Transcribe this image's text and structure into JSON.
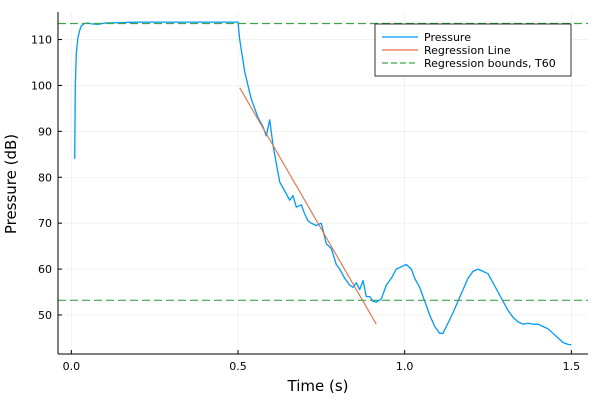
{
  "chart_data": {
    "type": "line",
    "title": "",
    "xlabel": "Time (s)",
    "ylabel": "Pressure (dB)",
    "xlim": [
      -0.04,
      1.55
    ],
    "ylim": [
      41.5,
      116
    ],
    "x_ticks": [
      0.0,
      0.5,
      1.0,
      1.5
    ],
    "x_tick_labels": [
      "0.0",
      "0.5",
      "1.0",
      "1.5"
    ],
    "y_ticks": [
      50,
      60,
      70,
      80,
      90,
      100,
      110
    ],
    "y_tick_labels": [
      "50",
      "60",
      "70",
      "80",
      "90",
      "100",
      "110"
    ],
    "grid": true,
    "legend_position": "top-right",
    "series": [
      {
        "name": "Pressure",
        "color": "#009AFA",
        "style": "solid",
        "x": [
          0.01,
          0.012,
          0.015,
          0.02,
          0.025,
          0.03,
          0.04,
          0.05,
          0.06,
          0.08,
          0.1,
          0.15,
          0.2,
          0.3,
          0.4,
          0.5,
          0.505,
          0.52,
          0.54,
          0.56,
          0.575,
          0.585,
          0.595,
          0.605,
          0.615,
          0.625,
          0.64,
          0.655,
          0.665,
          0.675,
          0.69,
          0.7,
          0.71,
          0.72,
          0.735,
          0.75,
          0.765,
          0.78,
          0.795,
          0.805,
          0.82,
          0.835,
          0.845,
          0.855,
          0.865,
          0.875,
          0.885,
          0.895,
          0.905,
          0.915,
          0.93,
          0.945,
          0.96,
          0.975,
          0.99,
          1.005,
          1.02,
          1.03,
          1.045,
          1.06,
          1.075,
          1.09,
          1.105,
          1.115,
          1.125,
          1.135,
          1.145,
          1.16,
          1.175,
          1.19,
          1.205,
          1.22,
          1.235,
          1.25,
          1.265,
          1.28,
          1.295,
          1.31,
          1.325,
          1.34,
          1.355,
          1.37,
          1.385,
          1.4,
          1.415,
          1.43,
          1.445,
          1.46,
          1.475,
          1.49,
          1.5
        ],
        "y": [
          84,
          100,
          107,
          110.5,
          112,
          113,
          113.5,
          113.6,
          113.4,
          113.3,
          113.6,
          113.7,
          113.8,
          113.8,
          113.8,
          113.8,
          110,
          103,
          97,
          93,
          91,
          89,
          92.5,
          87,
          83,
          79,
          77,
          75,
          76,
          73.5,
          74,
          72,
          70.5,
          70,
          69.5,
          70,
          65.5,
          64.5,
          61,
          60,
          58,
          56.5,
          56,
          57,
          55.5,
          57.5,
          54,
          54,
          53,
          52.8,
          53.5,
          56.5,
          58,
          60,
          60.5,
          61,
          60,
          58,
          56,
          53,
          50,
          47.5,
          46,
          46,
          47.5,
          49,
          50.5,
          53,
          55.5,
          58,
          59.5,
          60,
          59.5,
          59,
          57,
          55,
          53,
          51,
          49.5,
          48.5,
          48,
          48.2,
          48,
          48,
          47.5,
          47,
          46,
          45,
          44,
          43.6,
          43.5
        ]
      },
      {
        "name": "Regression Line",
        "color": "#E26F46",
        "style": "solid",
        "x": [
          0.505,
          0.915
        ],
        "y": [
          99.5,
          48
        ]
      },
      {
        "name": "Regression bounds, T60",
        "color": "#3DA44D",
        "style": "dashed",
        "hlines": [
          113.5,
          53.2
        ]
      }
    ]
  }
}
